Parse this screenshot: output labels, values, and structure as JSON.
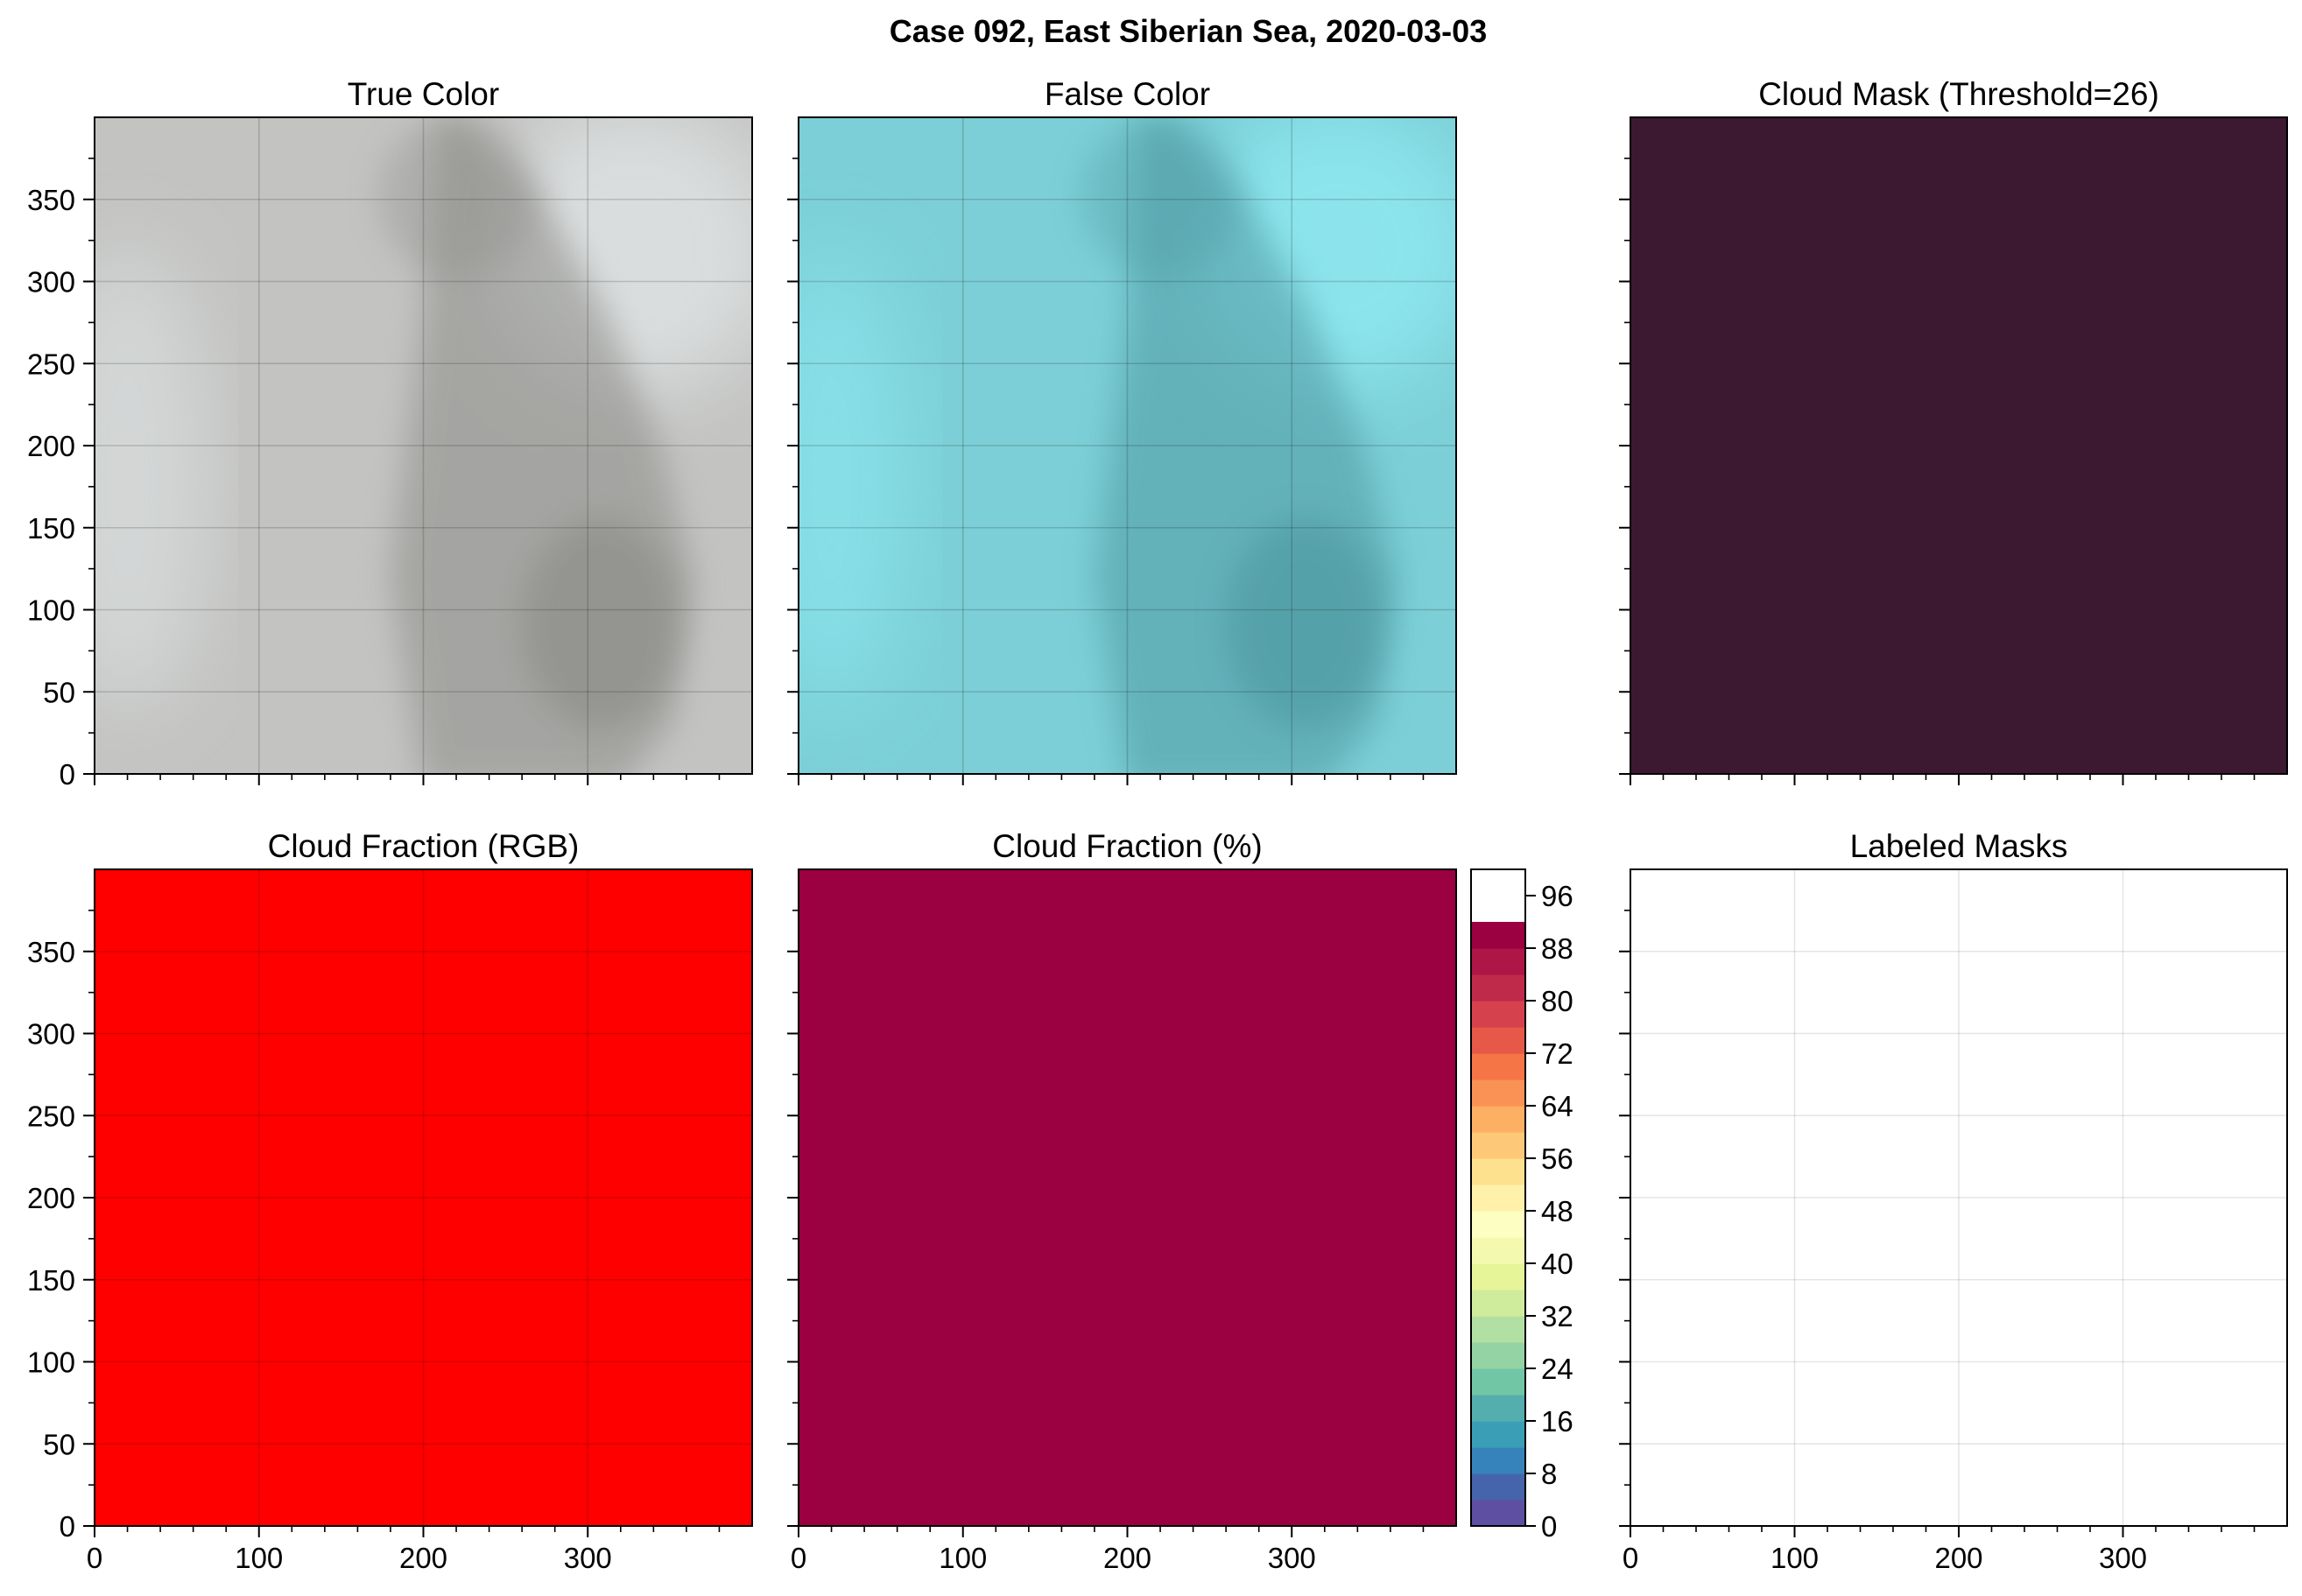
{
  "figure": {
    "suptitle": "Case 092, East Siberian Sea, 2020-03-03"
  },
  "chart_data": [
    {
      "id": "true-color",
      "type": "heatmap",
      "title": "True Color",
      "xlim": [
        0,
        400
      ],
      "ylim": [
        400,
        0
      ],
      "y_ticks": [
        0,
        50,
        100,
        150,
        200,
        250,
        300,
        350
      ],
      "x_ticks": [],
      "grid": true,
      "image": "grayscale satellite image of ice and cloud; darker grey ice floe at lower right",
      "colors": {
        "base": "#c3c4c2",
        "light": "#dcdfe0",
        "dark": "#8c8c88"
      }
    },
    {
      "id": "false-color",
      "type": "heatmap",
      "title": "False Color",
      "xlim": [
        0,
        400
      ],
      "ylim": [
        400,
        0
      ],
      "y_ticks": [],
      "x_ticks": [],
      "grid": true,
      "image": "cyan false-color composite; darker teal ice floe at lower right",
      "colors": {
        "base": "#7ccfd6",
        "light": "#8de5ee",
        "dark": "#4f9aa2"
      }
    },
    {
      "id": "cloud-mask",
      "type": "heatmap",
      "title": "Cloud Mask (Threshold=26)",
      "xlim": [
        0,
        400
      ],
      "ylim": [
        400,
        0
      ],
      "y_ticks": [],
      "x_ticks": [],
      "grid": false,
      "colors": {
        "fill": "#3c1931"
      }
    },
    {
      "id": "cloud-fraction-rgb",
      "type": "heatmap",
      "title": "Cloud Fraction (RGB)",
      "xlim": [
        0,
        400
      ],
      "ylim": [
        400,
        0
      ],
      "y_ticks": [
        0,
        50,
        100,
        150,
        200,
        250,
        300,
        350
      ],
      "x_ticks": [
        0,
        100,
        200,
        300
      ],
      "grid": true,
      "colors": {
        "fill": "#ff0000"
      }
    },
    {
      "id": "cloud-fraction-pct",
      "type": "heatmap",
      "title": "Cloud Fraction (%)",
      "xlim": [
        0,
        400
      ],
      "ylim": [
        400,
        0
      ],
      "y_ticks": [],
      "x_ticks": [
        0,
        100,
        200,
        300
      ],
      "grid": false,
      "value": 100,
      "colors": {
        "fill": "#9b0040"
      },
      "colorbar": {
        "range": [
          0,
          100
        ],
        "step": 4,
        "tick_labels": [
          0,
          8,
          16,
          24,
          32,
          40,
          48,
          56,
          64,
          72,
          80,
          88,
          96
        ],
        "colormap": [
          "#5e4fa2",
          "#4664ab",
          "#3683bb",
          "#3a9eb6",
          "#54aead",
          "#71c6a5",
          "#93d3a4",
          "#b2e0a2",
          "#cfec9d",
          "#e6f598",
          "#f3fab0",
          "#fdfec1",
          "#fff1a9",
          "#fee18e",
          "#fdc978",
          "#fdaf63",
          "#fa9155",
          "#f57547",
          "#e65847",
          "#d5424d",
          "#c02a4a",
          "#ad1646",
          "#9b0040"
        ]
      }
    },
    {
      "id": "labeled-masks",
      "type": "heatmap",
      "title": "Labeled Masks",
      "xlim": [
        0,
        400
      ],
      "ylim": [
        400,
        0
      ],
      "y_ticks": [],
      "x_ticks": [
        0,
        100,
        200,
        300
      ],
      "grid": true,
      "colors": {
        "fill": "#ffffff"
      }
    }
  ]
}
